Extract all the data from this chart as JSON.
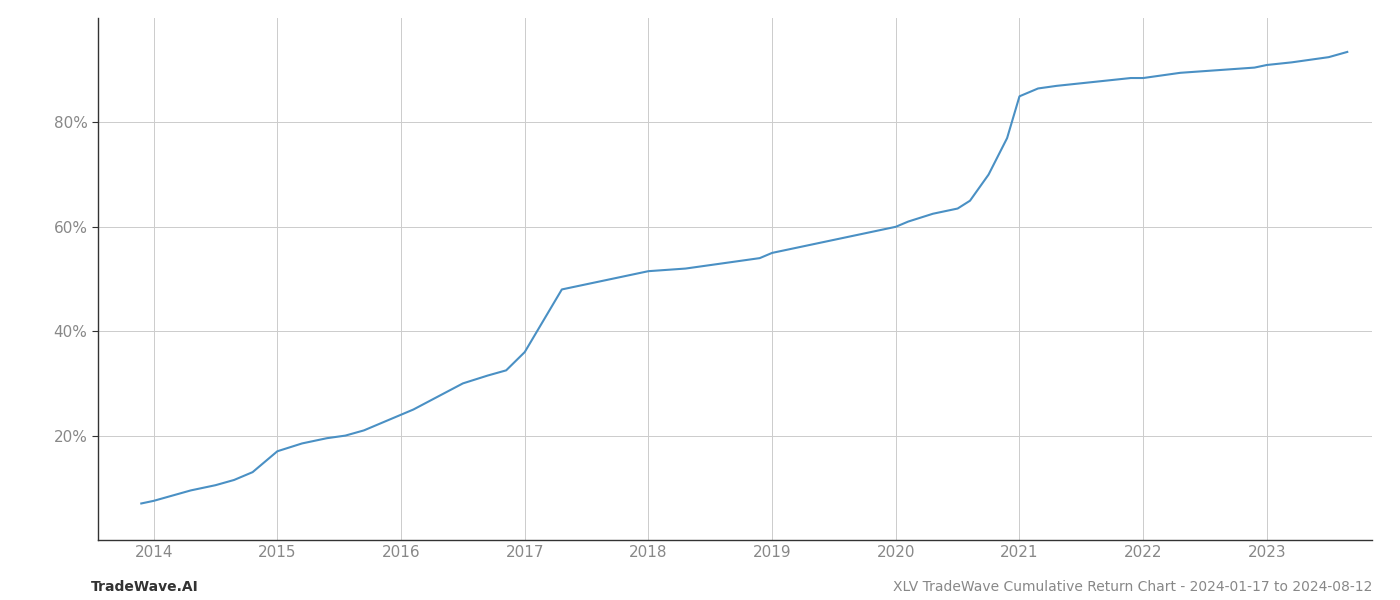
{
  "title": "",
  "footer_left": "TradeWave.AI",
  "footer_right": "XLV TradeWave Cumulative Return Chart - 2024-01-17 to 2024-08-12",
  "line_color": "#4a90c4",
  "background_color": "#ffffff",
  "grid_color": "#cccccc",
  "x_years": [
    2014,
    2015,
    2016,
    2017,
    2018,
    2019,
    2020,
    2021,
    2022,
    2023
  ],
  "data_x": [
    2013.9,
    2014.0,
    2014.15,
    2014.3,
    2014.5,
    2014.65,
    2014.8,
    2015.0,
    2015.2,
    2015.4,
    2015.55,
    2015.7,
    2015.9,
    2016.1,
    2016.3,
    2016.5,
    2016.7,
    2016.85,
    2017.0,
    2017.15,
    2017.3,
    2017.5,
    2017.7,
    2017.9,
    2018.0,
    2018.3,
    2018.6,
    2018.9,
    2019.0,
    2019.2,
    2019.5,
    2019.7,
    2019.9,
    2020.0,
    2020.1,
    2020.3,
    2020.5,
    2020.6,
    2020.75,
    2020.9,
    2021.0,
    2021.15,
    2021.3,
    2021.5,
    2021.7,
    2021.9,
    2022.0,
    2022.3,
    2022.6,
    2022.9,
    2023.0,
    2023.2,
    2023.5,
    2023.65
  ],
  "data_y": [
    7,
    7.5,
    8.5,
    9.5,
    10.5,
    11.5,
    13,
    17,
    18.5,
    19.5,
    20,
    21,
    23,
    25,
    27.5,
    30,
    31.5,
    32.5,
    36,
    42,
    48,
    49,
    50,
    51,
    51.5,
    52,
    53,
    54,
    55,
    56,
    57.5,
    58.5,
    59.5,
    60,
    61,
    62.5,
    63.5,
    65,
    70,
    77,
    85,
    86.5,
    87,
    87.5,
    88,
    88.5,
    88.5,
    89.5,
    90,
    90.5,
    91,
    91.5,
    92.5,
    93.5
  ],
  "ylim": [
    0,
    100
  ],
  "yticks": [
    20,
    40,
    60,
    80
  ],
  "xlim": [
    2013.55,
    2023.85
  ],
  "line_width": 1.5,
  "footer_fontsize": 10,
  "tick_fontsize": 11,
  "tick_color": "#888888",
  "spine_color": "#333333"
}
